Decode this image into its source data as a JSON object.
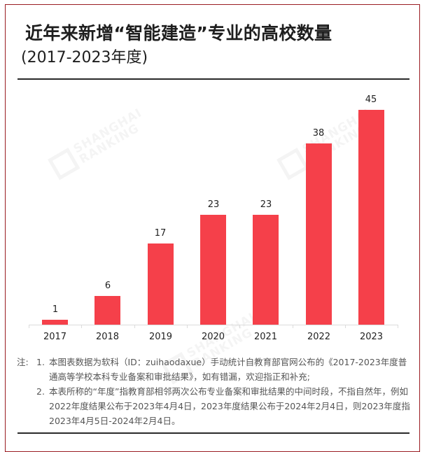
{
  "title": "近年来新增“智能建造”专业的高校数量",
  "subtitle": "(2017-2023年度)",
  "watermark": {
    "line1": "SHANGHAI",
    "line2": "RANKING"
  },
  "colors": {
    "bar": "#f5404a",
    "frame": "#9a1c22",
    "rule": "#2a2a2a",
    "axis": "#dcdcdc",
    "notes": "#555555"
  },
  "chart_data": {
    "type": "bar",
    "title": "近年来新增“智能建造”专业的高校数量 (2017-2023年度)",
    "categories": [
      "2017",
      "2018",
      "2019",
      "2020",
      "2021",
      "2022",
      "2023"
    ],
    "values": [
      1,
      6,
      17,
      23,
      23,
      38,
      45
    ],
    "xlabel": "",
    "ylabel": "",
    "ylim": [
      0,
      45
    ],
    "grid": false,
    "legend": null,
    "data_labels": true
  },
  "notes": {
    "prefix": "注:",
    "items": [
      {
        "num": "1.",
        "text": "本图表数据为软科（ID：zuihaodaxue）手动统计自教育部官网公布的《2017-2023年度普通高等学校本科专业备案和审批结果》，如有错漏，欢迎指正和补充;"
      },
      {
        "num": "2.",
        "text": "本表所称的“年度”指教育部相邻两次公布专业备案和审批结果的中间时段，不指自然年，例如2022年度结果公布于2023年4月4日，2023年度结果公布于2024年2月4日，则2023年度指2023年4月5日-2024年2月4日。"
      }
    ]
  }
}
